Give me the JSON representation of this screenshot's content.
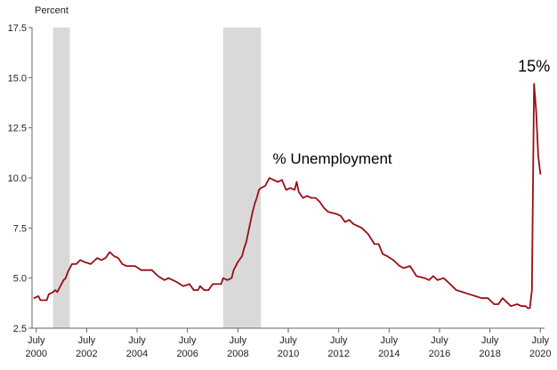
{
  "chart_data": {
    "type": "line",
    "title": "",
    "ylabel": "Percent",
    "xlabel": "",
    "ylim": [
      2.5,
      17.5
    ],
    "yticks": [
      {
        "value": 2.5,
        "label": "2.5"
      },
      {
        "value": 5.0,
        "label": "5.0"
      },
      {
        "value": 7.5,
        "label": "7.5"
      },
      {
        "value": 10.0,
        "label": "10.0"
      },
      {
        "value": 12.5,
        "label": "12.5"
      },
      {
        "value": 15.0,
        "label": "15.0"
      },
      {
        "value": 17.5,
        "label": "17.5"
      }
    ],
    "xlim": [
      "2000-05",
      "2020-09"
    ],
    "xticks": [
      {
        "date": "2000-07",
        "month": "July",
        "year": "2000"
      },
      {
        "date": "2002-07",
        "month": "July",
        "year": "2002"
      },
      {
        "date": "2004-07",
        "month": "July",
        "year": "2004"
      },
      {
        "date": "2006-07",
        "month": "July",
        "year": "2006"
      },
      {
        "date": "2008-07",
        "month": "July",
        "year": "2008"
      },
      {
        "date": "2010-07",
        "month": "July",
        "year": "2010"
      },
      {
        "date": "2012-07",
        "month": "July",
        "year": "2012"
      },
      {
        "date": "2014-07",
        "month": "July",
        "year": "2014"
      },
      {
        "date": "2016-07",
        "month": "July",
        "year": "2016"
      },
      {
        "date": "2018-07",
        "month": "July",
        "year": "2018"
      },
      {
        "date": "2020-07",
        "month": "July",
        "year": "2020"
      }
    ],
    "recessions": [
      {
        "start": "2001-03",
        "end": "2001-11"
      },
      {
        "start": "2007-12",
        "end": "2009-06"
      }
    ],
    "grid": false,
    "legend": "none",
    "colors": {
      "line": "#9b0d14",
      "recession": "#d9d9d9",
      "axis": "#666666"
    },
    "annotations": [
      {
        "text": "% Unemployment",
        "date": "2012-04",
        "y": 10.7,
        "size": "medium"
      },
      {
        "text": "15%",
        "date": "2020-04",
        "y": 15.3,
        "size": "large"
      }
    ],
    "series": [
      {
        "points": [
          [
            "2000-06",
            4.0
          ],
          [
            "2000-08",
            4.1
          ],
          [
            "2000-09",
            3.9
          ],
          [
            "2000-12",
            3.9
          ],
          [
            "2001-01",
            4.2
          ],
          [
            "2001-03",
            4.3
          ],
          [
            "2001-04",
            4.4
          ],
          [
            "2001-05",
            4.3
          ],
          [
            "2001-06",
            4.5
          ],
          [
            "2001-08",
            4.9
          ],
          [
            "2001-09",
            5.0
          ],
          [
            "2001-10",
            5.3
          ],
          [
            "2001-11",
            5.5
          ],
          [
            "2001-12",
            5.7
          ],
          [
            "2002-02",
            5.7
          ],
          [
            "2002-04",
            5.9
          ],
          [
            "2002-06",
            5.8
          ],
          [
            "2002-09",
            5.7
          ],
          [
            "2002-11",
            5.9
          ],
          [
            "2002-12",
            6.0
          ],
          [
            "2003-02",
            5.9
          ],
          [
            "2003-04",
            6.0
          ],
          [
            "2003-06",
            6.3
          ],
          [
            "2003-08",
            6.1
          ],
          [
            "2003-10",
            6.0
          ],
          [
            "2003-12",
            5.7
          ],
          [
            "2004-02",
            5.6
          ],
          [
            "2004-04",
            5.6
          ],
          [
            "2004-06",
            5.6
          ],
          [
            "2004-09",
            5.4
          ],
          [
            "2004-12",
            5.4
          ],
          [
            "2005-02",
            5.4
          ],
          [
            "2005-05",
            5.1
          ],
          [
            "2005-08",
            4.9
          ],
          [
            "2005-10",
            5.0
          ],
          [
            "2005-12",
            4.9
          ],
          [
            "2006-02",
            4.8
          ],
          [
            "2006-05",
            4.6
          ],
          [
            "2006-08",
            4.7
          ],
          [
            "2006-10",
            4.4
          ],
          [
            "2006-12",
            4.4
          ],
          [
            "2007-01",
            4.6
          ],
          [
            "2007-03",
            4.4
          ],
          [
            "2007-05",
            4.4
          ],
          [
            "2007-07",
            4.7
          ],
          [
            "2007-09",
            4.7
          ],
          [
            "2007-11",
            4.7
          ],
          [
            "2007-12",
            5.0
          ],
          [
            "2008-02",
            4.9
          ],
          [
            "2008-04",
            5.0
          ],
          [
            "2008-05",
            5.4
          ],
          [
            "2008-07",
            5.8
          ],
          [
            "2008-09",
            6.1
          ],
          [
            "2008-10",
            6.5
          ],
          [
            "2008-11",
            6.8
          ],
          [
            "2008-12",
            7.3
          ],
          [
            "2009-01",
            7.8
          ],
          [
            "2009-02",
            8.3
          ],
          [
            "2009-03",
            8.7
          ],
          [
            "2009-04",
            9.0
          ],
          [
            "2009-05",
            9.4
          ],
          [
            "2009-06",
            9.5
          ],
          [
            "2009-08",
            9.6
          ],
          [
            "2009-10",
            10.0
          ],
          [
            "2009-12",
            9.9
          ],
          [
            "2010-02",
            9.8
          ],
          [
            "2010-04",
            9.9
          ],
          [
            "2010-06",
            9.4
          ],
          [
            "2010-08",
            9.5
          ],
          [
            "2010-10",
            9.4
          ],
          [
            "2010-11",
            9.8
          ],
          [
            "2010-12",
            9.3
          ],
          [
            "2011-02",
            9.0
          ],
          [
            "2011-04",
            9.1
          ],
          [
            "2011-06",
            9.0
          ],
          [
            "2011-08",
            9.0
          ],
          [
            "2011-10",
            8.8
          ],
          [
            "2011-12",
            8.5
          ],
          [
            "2012-02",
            8.3
          ],
          [
            "2012-06",
            8.2
          ],
          [
            "2012-08",
            8.1
          ],
          [
            "2012-10",
            7.8
          ],
          [
            "2012-12",
            7.9
          ],
          [
            "2013-02",
            7.7
          ],
          [
            "2013-04",
            7.6
          ],
          [
            "2013-06",
            7.5
          ],
          [
            "2013-09",
            7.2
          ],
          [
            "2013-12",
            6.7
          ],
          [
            "2014-02",
            6.7
          ],
          [
            "2014-04",
            6.2
          ],
          [
            "2014-06",
            6.1
          ],
          [
            "2014-09",
            5.9
          ],
          [
            "2014-12",
            5.6
          ],
          [
            "2015-02",
            5.5
          ],
          [
            "2015-05",
            5.6
          ],
          [
            "2015-08",
            5.1
          ],
          [
            "2015-12",
            5.0
          ],
          [
            "2016-02",
            4.9
          ],
          [
            "2016-04",
            5.1
          ],
          [
            "2016-06",
            4.9
          ],
          [
            "2016-09",
            5.0
          ],
          [
            "2016-12",
            4.7
          ],
          [
            "2017-03",
            4.4
          ],
          [
            "2017-06",
            4.3
          ],
          [
            "2017-09",
            4.2
          ],
          [
            "2017-12",
            4.1
          ],
          [
            "2018-03",
            4.0
          ],
          [
            "2018-06",
            4.0
          ],
          [
            "2018-09",
            3.7
          ],
          [
            "2018-11",
            3.7
          ],
          [
            "2019-01",
            4.0
          ],
          [
            "2019-03",
            3.8
          ],
          [
            "2019-05",
            3.6
          ],
          [
            "2019-08",
            3.7
          ],
          [
            "2019-10",
            3.6
          ],
          [
            "2019-12",
            3.6
          ],
          [
            "2020-01",
            3.5
          ],
          [
            "2020-02",
            3.5
          ],
          [
            "2020-03",
            4.4
          ],
          [
            "2020-04",
            14.7
          ],
          [
            "2020-05",
            13.3
          ],
          [
            "2020-06",
            11.1
          ],
          [
            "2020-07",
            10.2
          ]
        ]
      }
    ]
  }
}
